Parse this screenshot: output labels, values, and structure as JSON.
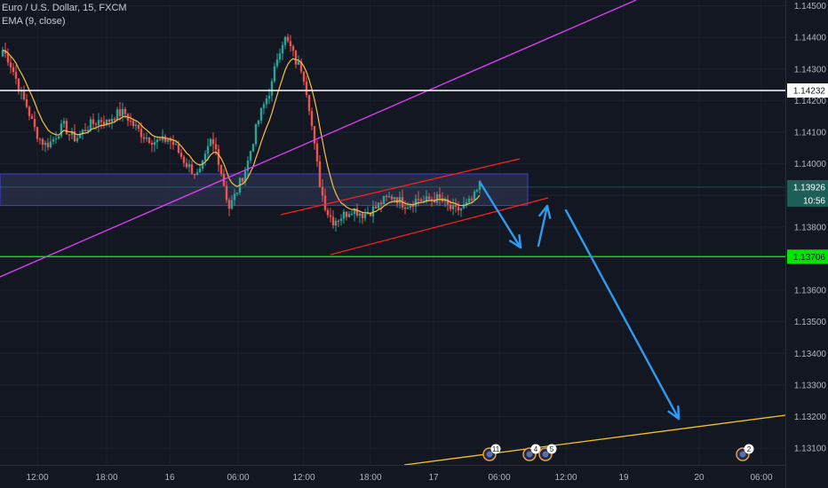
{
  "legend": {
    "symbol": "Euro / U.S. Dollar, 15, FXCM",
    "indicator": "EMA (9, close)"
  },
  "colors": {
    "background": "#131722",
    "up": "#26a69a",
    "down": "#ef5350",
    "ema": "#f5c244",
    "trend_magenta": "#e040fb",
    "channel_red": "#ff1f1f",
    "support_green": "#00e600",
    "resistance_white": "#ffffff",
    "zone_fill": "#2a2e46",
    "zone_border": "#3f3fd8",
    "arrow_blue": "#2f9bf0",
    "trend_yellow": "#f5c518"
  },
  "chart_data": {
    "type": "candlestick",
    "symbol": "Euro / U.S. Dollar",
    "timeframe": "15",
    "source": "FXCM",
    "indicator": "EMA (9, close)",
    "ylim": [
      1.1303,
      1.1451
    ],
    "y_ticks": [
      1.145,
      1.144,
      1.143,
      1.142,
      1.141,
      1.14,
      1.139,
      1.138,
      1.137,
      1.136,
      1.135,
      1.134,
      1.133,
      1.132,
      1.131
    ],
    "y_tick_labels": [
      "1.14500",
      "1.14400",
      "1.14300",
      "1.14200",
      "1.14100",
      "1.14000",
      "1.13900",
      "1.13800",
      "1.13700",
      "1.13600",
      "1.13500",
      "1.13400",
      "1.13300",
      "1.13200",
      "1.13100"
    ],
    "x_ticks": [
      "12:00",
      "18:00",
      "16",
      "06:00",
      "12:00",
      "18:00",
      "17",
      "06:00",
      "12:00",
      "19",
      "20",
      "06:00"
    ],
    "price_labels": [
      {
        "kind": "resistance",
        "value": "1.14232"
      },
      {
        "kind": "current",
        "value": "1.13926",
        "countdown": "10:56"
      },
      {
        "kind": "support",
        "value": "1.13706"
      }
    ],
    "levels": {
      "resistance": 1.14232,
      "support": 1.13706,
      "zone": [
        1.13868,
        1.13968
      ],
      "last": 1.13926
    },
    "events": [
      {
        "badge": "11"
      },
      {
        "badge": "4"
      },
      {
        "badge": "5"
      },
      {
        "badge": "2"
      }
    ],
    "price_path": [
      1.1436,
      1.1433,
      1.1428,
      1.1422,
      1.1418,
      1.1412,
      1.1408,
      1.1406,
      1.1407,
      1.141,
      1.1412,
      1.1409,
      1.1408,
      1.141,
      1.1412,
      1.1413,
      1.1414,
      1.1413,
      1.1415,
      1.1416,
      1.1416,
      1.1413,
      1.1411,
      1.1409,
      1.1408,
      1.1407,
      1.1407,
      1.1408,
      1.1406,
      1.1403,
      1.14,
      1.1398,
      1.1396,
      1.1401,
      1.1407,
      1.1404,
      1.1395,
      1.1386,
      1.139,
      1.1395,
      1.14,
      1.1408,
      1.1415,
      1.142,
      1.1425,
      1.1435,
      1.144,
      1.1437,
      1.1432,
      1.143,
      1.142,
      1.1405,
      1.1392,
      1.1385,
      1.1382,
      1.1383,
      1.1384,
      1.1386,
      1.1385,
      1.1384,
      1.1385,
      1.1386,
      1.1388,
      1.1389,
      1.139,
      1.1388,
      1.1387,
      1.1388,
      1.1389,
      1.1388,
      1.1389,
      1.1389,
      1.1388,
      1.1386,
      1.1385,
      1.1386,
      1.1387,
      1.1389,
      1.1393
    ]
  }
}
